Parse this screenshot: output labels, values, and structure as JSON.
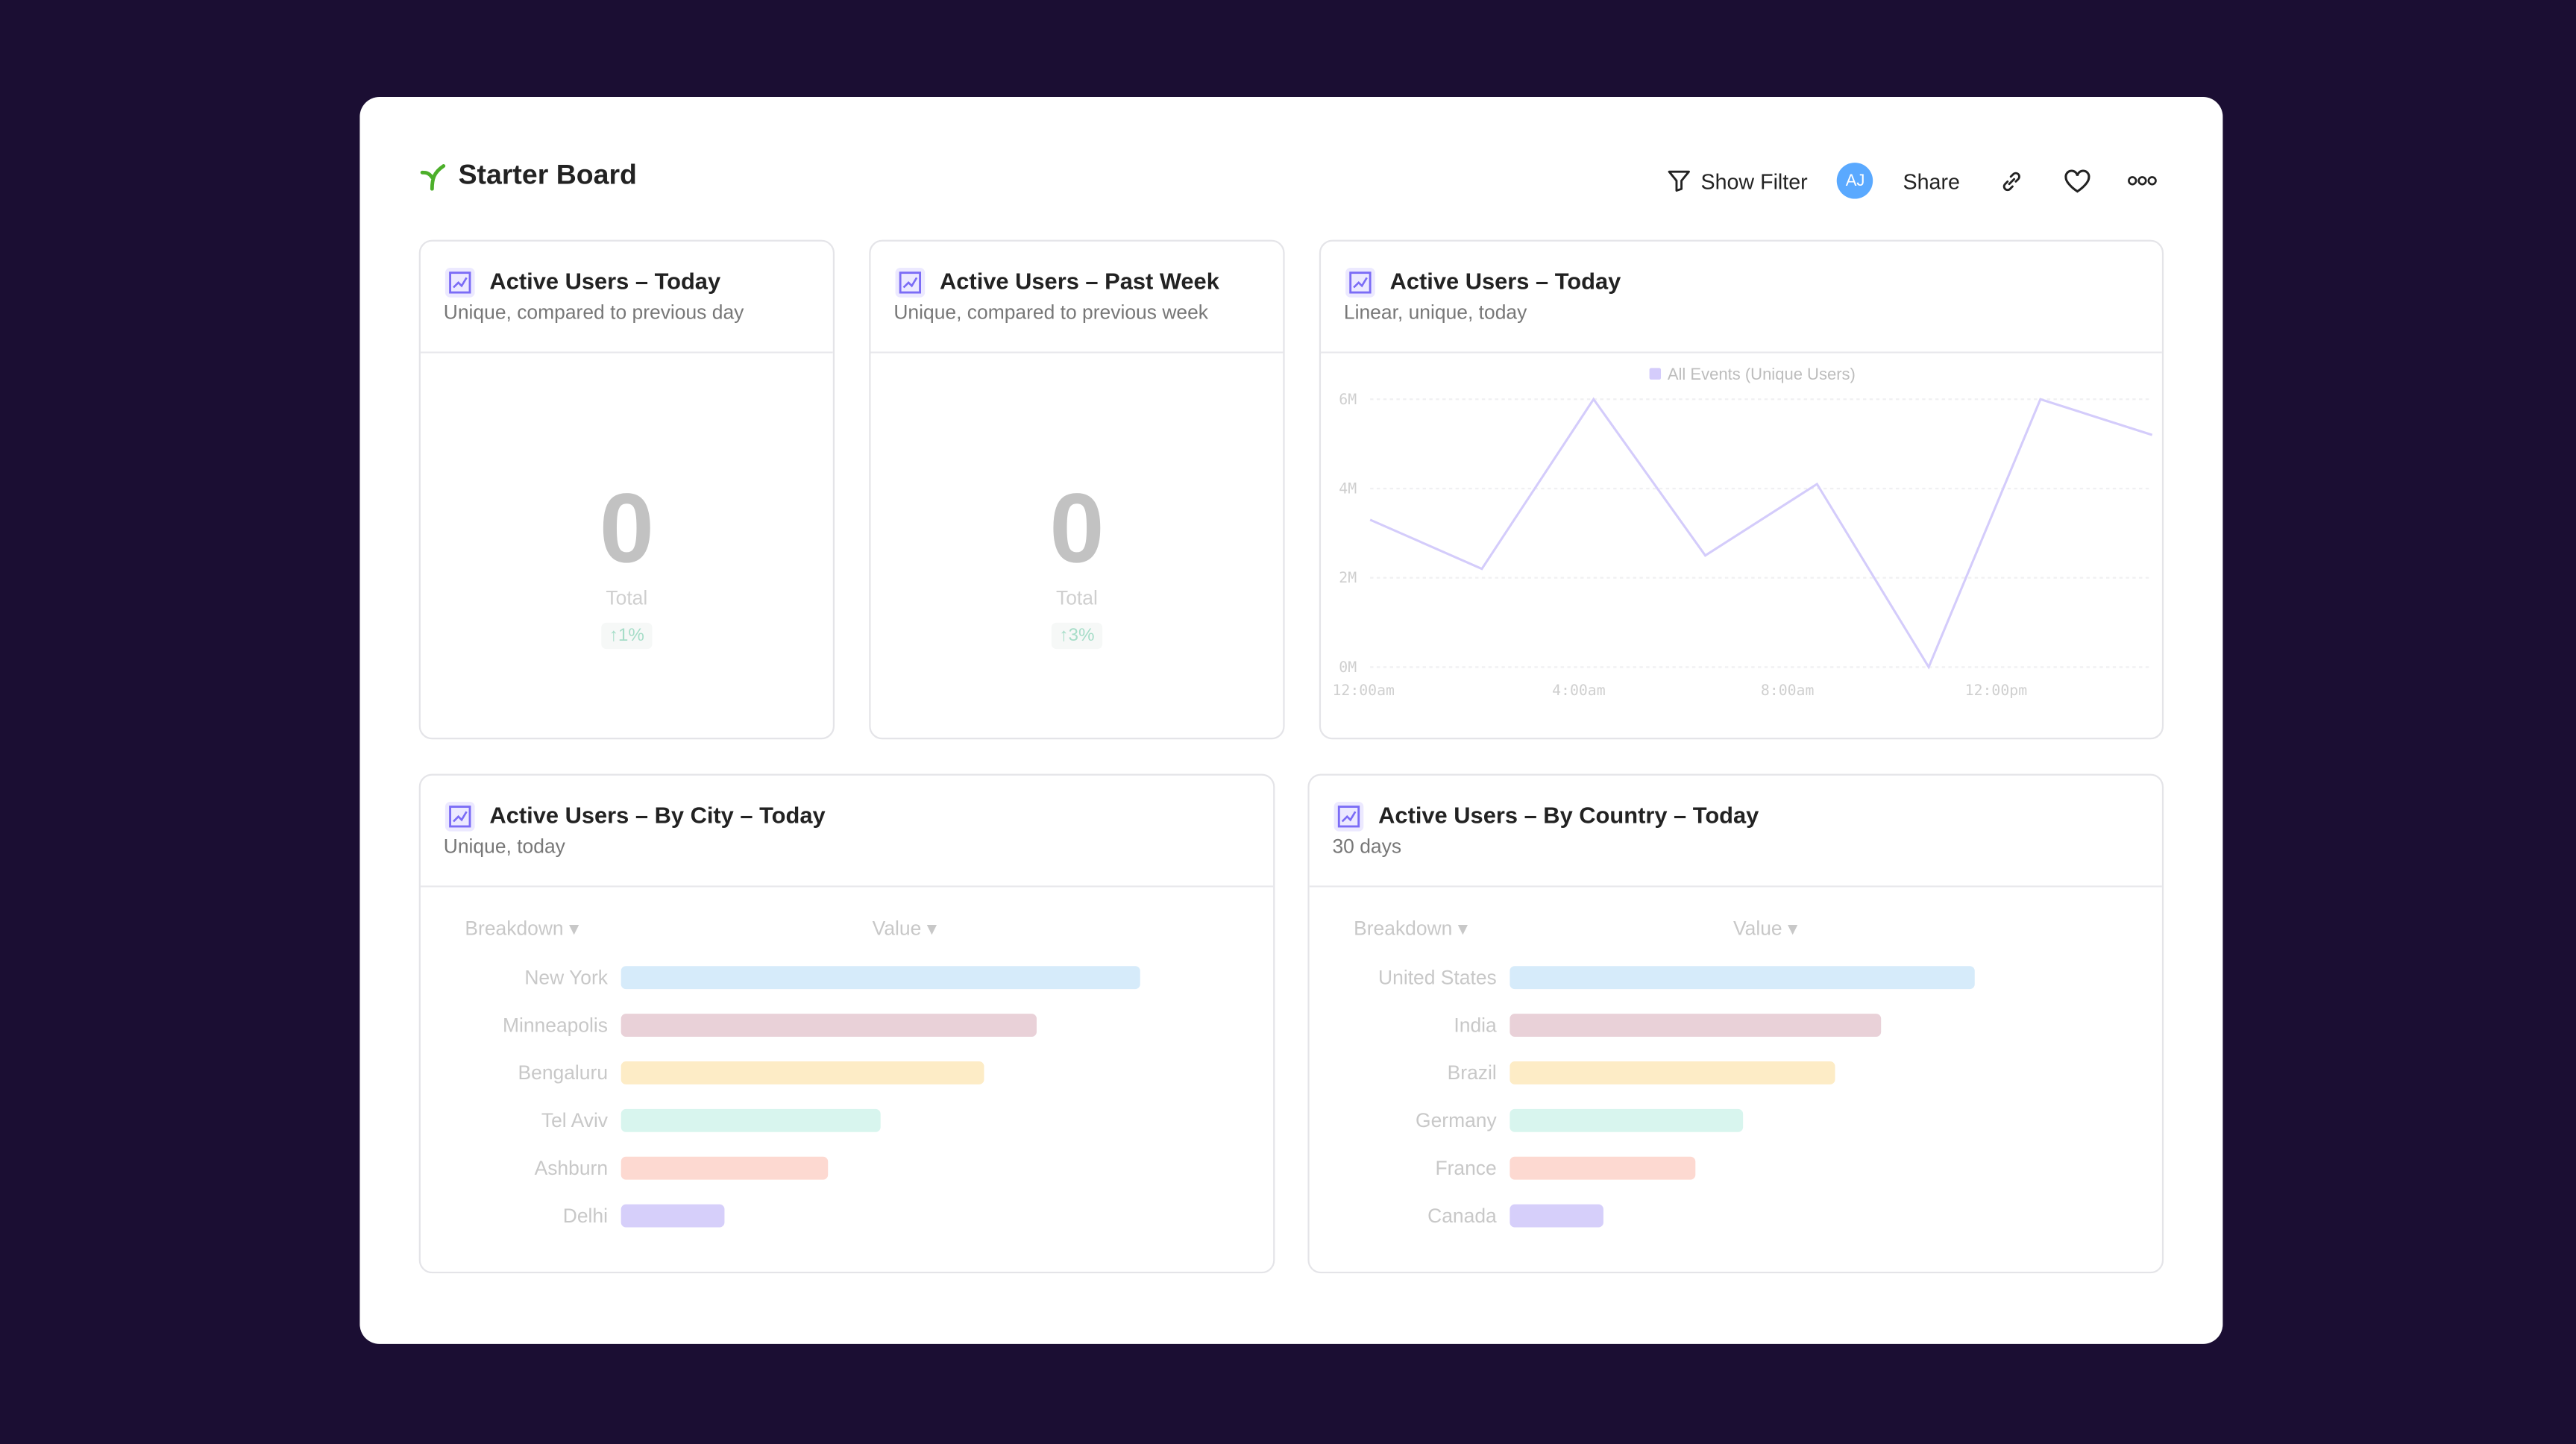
{
  "header": {
    "title": "Starter Board",
    "logo_icon": "sprout-icon",
    "show_filter": "Show Filter",
    "avatar_initials": "AJ",
    "share": "Share",
    "icons": [
      "filter-icon",
      "link-icon",
      "heart-icon",
      "more-icon"
    ]
  },
  "colors": {
    "background": "#1b0e33",
    "accent": "#5aa9ff",
    "line": "#d4ccfb",
    "delta": "#a6ddc8"
  },
  "cards": {
    "today": {
      "title": "Active Users – Today",
      "subtitle": "Unique, compared to previous day",
      "value": "0",
      "label": "Total",
      "delta": "↑1%"
    },
    "week": {
      "title": "Active Users – Past Week",
      "subtitle": "Unique, compared to previous week",
      "value": "0",
      "label": "Total",
      "delta": "↑3%"
    },
    "line": {
      "title": "Active Users – Today",
      "subtitle": "Linear, unique, today"
    },
    "city": {
      "title": "Active Users – By City – Today",
      "subtitle": "Unique, today",
      "col_breakdown": "Breakdown",
      "col_value": "Value"
    },
    "country": {
      "title": "Active Users – By Country – Today",
      "subtitle": "30 days",
      "col_breakdown": "Breakdown",
      "col_value": "Value"
    }
  },
  "chart_data": [
    {
      "type": "line",
      "legend": "All Events (Unique Users)",
      "legend_placement": "top",
      "x": [
        "12:00am",
        "2:00am",
        "4:00am",
        "6:00am",
        "8:00am",
        "10:00am",
        "12:00pm",
        "2:00pm"
      ],
      "series": [
        {
          "name": "All Events (Unique Users)",
          "values": [
            3300000,
            2200000,
            6000000,
            2500000,
            4100000,
            0,
            6000000,
            5200000
          ]
        }
      ],
      "yticks": [
        "0M",
        "2M",
        "4M",
        "6M"
      ],
      "xticks": [
        "12:00am",
        "4:00am",
        "8:00am",
        "12:00pm"
      ],
      "ylim": [
        0,
        6000000
      ],
      "grid": true
    },
    {
      "type": "bar",
      "orientation": "horizontal",
      "categories": [
        "New York",
        "Minneapolis",
        "Bengaluru",
        "Tel Aviv",
        "Ashburn",
        "Delhi"
      ],
      "values": [
        100,
        80,
        70,
        50,
        40,
        20
      ],
      "colors": [
        "#d6ebfa",
        "#e9d1d8",
        "#fdecc6",
        "#d8f5ee",
        "#fdd9d1",
        "#d6cffa"
      ]
    },
    {
      "type": "bar",
      "orientation": "horizontal",
      "categories": [
        "United States",
        "India",
        "Brazil",
        "Germany",
        "France",
        "Canada"
      ],
      "values": [
        100,
        80,
        70,
        50,
        40,
        20
      ],
      "colors": [
        "#d6ebfa",
        "#e9d1d8",
        "#fdecc6",
        "#d8f5ee",
        "#fdd9d1",
        "#d6cffa"
      ]
    }
  ]
}
